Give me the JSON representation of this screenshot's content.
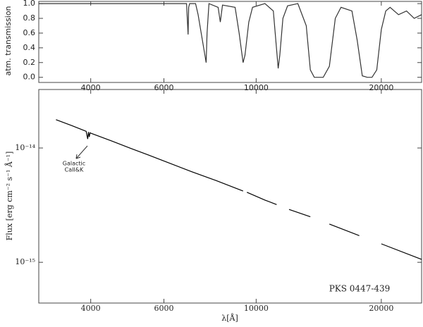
{
  "chart_data": [
    {
      "type": "line",
      "y_label": "atm. transmission",
      "color": "#333333",
      "xscale": "log",
      "x": [
        3000,
        6800,
        6860,
        6880,
        6920,
        7150,
        7250,
        7580,
        7620,
        7700,
        8100,
        8200,
        8300,
        8900,
        9100,
        9300,
        9400,
        9600,
        9800,
        10500,
        11000,
        11300,
        11400,
        11600,
        11900,
        12600,
        13200,
        13500,
        13800,
        14500,
        15000,
        15500,
        16000,
        17000,
        17500,
        18000,
        18500,
        19000,
        19500,
        20000,
        20500,
        21000,
        22000,
        23000,
        24000,
        25000
      ],
      "values": [
        1.0,
        1.0,
        0.58,
        0.95,
        1.0,
        1.0,
        0.85,
        0.2,
        0.6,
        1.0,
        0.95,
        0.75,
        0.98,
        0.95,
        0.6,
        0.2,
        0.3,
        0.75,
        0.95,
        1.0,
        0.9,
        0.12,
        0.3,
        0.8,
        0.97,
        1.0,
        0.7,
        0.1,
        0.0,
        0.0,
        0.15,
        0.8,
        0.95,
        0.9,
        0.5,
        0.02,
        0.0,
        0.0,
        0.1,
        0.65,
        0.9,
        0.95,
        0.85,
        0.9,
        0.8,
        0.85
      ],
      "xlim": [
        3000,
        25000
      ],
      "xticks": [
        4000,
        6000,
        10000,
        20000
      ],
      "ylim": [
        -0.07,
        1.03
      ],
      "yticks": [
        {
          "value": 0,
          "label": "0.0"
        },
        0.2,
        0.4,
        0.6,
        0.8,
        {
          "value": 1,
          "label": "1.0"
        }
      ]
    },
    {
      "type": "line",
      "x_label": "λ[Å]",
      "y_label": "Flux [erg cm⁻² s⁻¹ Å⁻¹]",
      "color": "#000000",
      "xscale": "log",
      "yscale": "log",
      "x": [
        3300,
        3600,
        3900,
        3934,
        3950,
        3968,
        3985,
        4000,
        4500,
        5000,
        5500,
        6000,
        7000,
        8000,
        9000,
        9300,
        9400,
        9500,
        10500,
        11200,
        11600,
        12000,
        13500,
        14200,
        15000,
        17700,
        18800,
        20000,
        25000
      ],
      "values": [
        1.77e-14,
        1.57e-14,
        1.4e-14,
        1.2e-14,
        1.38e-14,
        1.25e-14,
        1.36e-14,
        1.35e-14,
        1.15e-14,
        9.9e-15,
        8.7e-15,
        7.7e-15,
        6.2e-15,
        5.2e-15,
        4.4e-15,
        4.2e-15,
        null,
        4.1e-15,
        3.5e-15,
        3.2e-15,
        null,
        2.9e-15,
        2.5e-15,
        null,
        2.16e-15,
        1.71e-15,
        null,
        1.45e-15,
        1.06e-15
      ],
      "xlim": [
        3000,
        25000
      ],
      "xticks": [
        4000,
        6000,
        10000,
        20000
      ],
      "ylim": [
        4.4e-16,
        3.25e-14
      ],
      "yticks": [
        {
          "value": 1e-14,
          "label": "10⁻¹⁴"
        },
        {
          "value": 1e-15,
          "label": "10⁻¹⁵"
        }
      ],
      "annotation": [
        "Galactic",
        "CaII&K"
      ],
      "source": "PKS 0447-439"
    }
  ]
}
